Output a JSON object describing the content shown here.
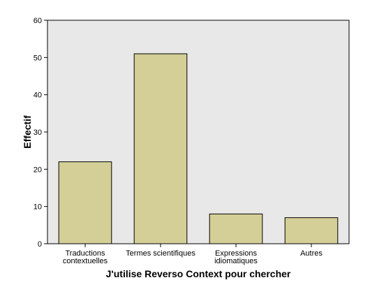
{
  "chart_data": {
    "type": "bar",
    "categories": [
      [
        "Traductions",
        "contextuelles"
      ],
      [
        "Termes scientifiques"
      ],
      [
        "Expressions",
        "idiomatiques"
      ],
      [
        "Autres"
      ]
    ],
    "values": [
      22,
      51,
      8,
      7
    ],
    "xlabel": "J'utilise Reverso Context pour chercher",
    "ylabel": "Effectif",
    "ylim": [
      0,
      60
    ],
    "yticks": [
      0,
      10,
      20,
      30,
      40,
      50,
      60
    ],
    "grid": false,
    "plot_background": "#e8e8e8",
    "bar_color": "#d4cf97",
    "bar_edge_color": "#000000"
  }
}
